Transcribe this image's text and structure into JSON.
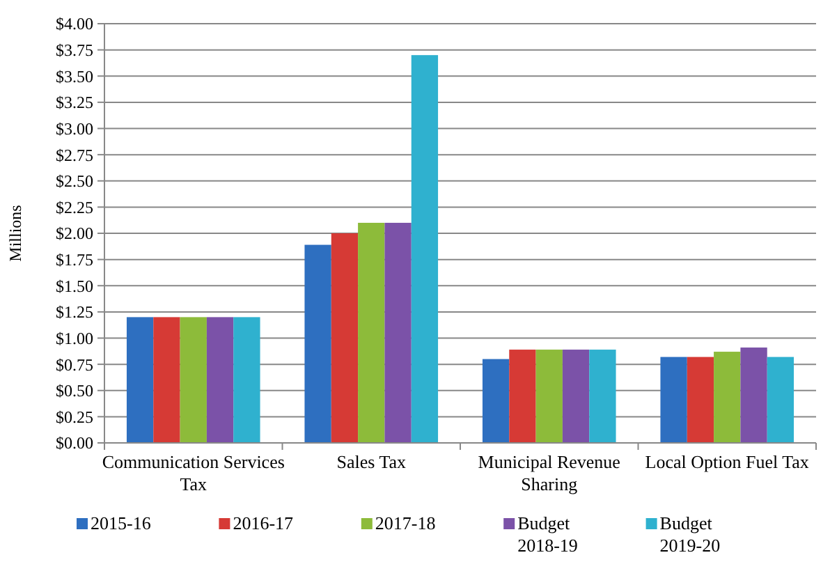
{
  "chart_data": {
    "type": "bar",
    "ylabel": "Millions",
    "categories": [
      "Communication Services Tax",
      "Sales Tax",
      "Municipal Revenue Sharing",
      "Local Option Fuel Tax"
    ],
    "series": [
      {
        "name": "2015-16",
        "color": "#2e6fc0",
        "values": [
          1.2,
          1.89,
          0.8,
          0.82
        ]
      },
      {
        "name": "2016-17",
        "color": "#d63a35",
        "values": [
          1.2,
          2.0,
          0.89,
          0.82
        ]
      },
      {
        "name": "2017-18",
        "color": "#8dbb3a",
        "values": [
          1.2,
          2.1,
          0.89,
          0.87
        ]
      },
      {
        "name": "Budget 2018-19",
        "color": "#7b52a8",
        "values": [
          1.2,
          2.1,
          0.89,
          0.91
        ]
      },
      {
        "name": "Budget 2019-20",
        "color": "#2fb1cf",
        "values": [
          1.2,
          3.7,
          0.89,
          0.82
        ]
      }
    ],
    "ylim": [
      0,
      4
    ],
    "yticks": [
      {
        "value": 0,
        "label": "$0.00"
      },
      {
        "value": 0.25,
        "label": "$0.25"
      },
      {
        "value": 0.5,
        "label": "$0.50"
      },
      {
        "value": 0.75,
        "label": "$0.75"
      },
      {
        "value": 1,
        "label": "$1.00"
      },
      {
        "value": 1.25,
        "label": "$1.25"
      },
      {
        "value": 1.5,
        "label": "$1.50"
      },
      {
        "value": 1.75,
        "label": "$1.75"
      },
      {
        "value": 2,
        "label": "$2.00"
      },
      {
        "value": 2.25,
        "label": "$2.25"
      },
      {
        "value": 2.5,
        "label": "$2.50"
      },
      {
        "value": 2.75,
        "label": "$2.75"
      },
      {
        "value": 3,
        "label": "$3.00"
      },
      {
        "value": 3.25,
        "label": "$3.25"
      },
      {
        "value": 3.5,
        "label": "$3.50"
      },
      {
        "value": 3.75,
        "label": "$3.75"
      },
      {
        "value": 4,
        "label": "$4.00"
      }
    ],
    "grid": "y",
    "legend": "bottom"
  }
}
